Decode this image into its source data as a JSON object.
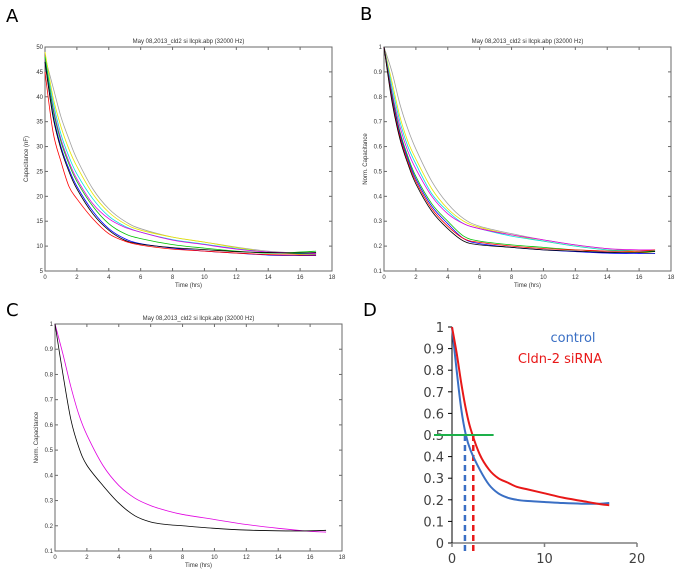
{
  "panels": {
    "A": {
      "letter": "A"
    },
    "B": {
      "letter": "B"
    },
    "C": {
      "letter": "C"
    },
    "D": {
      "letter": "D"
    }
  },
  "chart_data": [
    {
      "id": "A",
      "type": "line",
      "title": "May 08,2013_cld2 si llcpk.abp (32000 Hz)",
      "xlabel": "Time (hrs)",
      "ylabel": "Capacitance (nF)",
      "xlim": [
        0,
        18
      ],
      "ylim": [
        5,
        50
      ],
      "xticks": [
        0,
        2,
        4,
        6,
        8,
        10,
        12,
        14,
        16,
        18
      ],
      "yticks": [
        5,
        10,
        15,
        20,
        25,
        30,
        35,
        40,
        45,
        50
      ],
      "grid": false,
      "x": [
        0,
        0.5,
        1,
        1.5,
        2,
        3,
        4,
        5,
        6,
        8,
        10,
        12,
        14,
        16,
        17
      ],
      "series": [
        {
          "name": "gray",
          "color": "#a0a0a0",
          "values": [
            48,
            42,
            36,
            31.5,
            27.5,
            21.5,
            17.5,
            15,
            13.5,
            11.8,
            10.8,
            9.8,
            9.0,
            8.6,
            8.5
          ]
        },
        {
          "name": "yellow",
          "color": "#e8e800",
          "values": [
            49,
            40,
            34,
            29.5,
            26,
            20.5,
            16.8,
            14.5,
            13.2,
            11.8,
            10.8,
            9.7,
            8.8,
            8.4,
            8.3
          ]
        },
        {
          "name": "cyan",
          "color": "#00e0e0",
          "values": [
            48,
            39,
            32.5,
            28,
            24.5,
            19.5,
            16,
            14,
            12.8,
            11.3,
            10.4,
            9.5,
            8.8,
            8.5,
            8.4
          ]
        },
        {
          "name": "magenta",
          "color": "#e000e0",
          "values": [
            47.5,
            38,
            31.5,
            27,
            23.5,
            18.5,
            15.5,
            13.8,
            12.8,
            11.2,
            10.3,
            9.4,
            8.8,
            8.6,
            8.5
          ]
        },
        {
          "name": "green",
          "color": "#00c000",
          "values": [
            48,
            37.5,
            31,
            26.5,
            23,
            18,
            14.5,
            12.5,
            11.5,
            10.3,
            9.6,
            9.0,
            8.6,
            8.8,
            9.0
          ]
        },
        {
          "name": "blue",
          "color": "#0000ff",
          "values": [
            47,
            36.5,
            30,
            25.5,
            22,
            17,
            13.5,
            11.5,
            10.5,
            9.6,
            9.0,
            8.6,
            8.2,
            8.1,
            8.1
          ]
        },
        {
          "name": "black",
          "color": "#000000",
          "values": [
            47,
            36,
            29.5,
            25,
            21.5,
            16.5,
            13.2,
            11.2,
            10.4,
            9.7,
            9.3,
            8.9,
            8.7,
            8.6,
            8.7
          ]
        },
        {
          "name": "red",
          "color": "#ff0000",
          "values": [
            45,
            33,
            27,
            22,
            19.5,
            15.5,
            12.5,
            11,
            10.2,
            9.4,
            9.0,
            8.6,
            8.3,
            8.2,
            8.2
          ]
        }
      ]
    },
    {
      "id": "B",
      "type": "line",
      "title": "May 08,2013_cld2 si llcpk.abp (32000 Hz)",
      "xlabel": "Time (hrs)",
      "ylabel": "Norm. Capacitance",
      "xlim": [
        0,
        18
      ],
      "ylim": [
        0.1,
        1
      ],
      "xticks": [
        0,
        2,
        4,
        6,
        8,
        10,
        12,
        14,
        16,
        18
      ],
      "yticks": [
        0.1,
        0.2,
        0.3,
        0.4,
        0.5,
        0.6,
        0.7,
        0.8,
        0.9,
        1
      ],
      "grid": false,
      "x": [
        0,
        0.5,
        1,
        1.5,
        2,
        3,
        4,
        5,
        6,
        8,
        10,
        12,
        14,
        16,
        17
      ],
      "series": [
        {
          "name": "gray",
          "color": "#a0a0a0",
          "values": [
            1,
            0.9,
            0.77,
            0.67,
            0.59,
            0.46,
            0.37,
            0.31,
            0.28,
            0.25,
            0.225,
            0.205,
            0.19,
            0.18,
            0.18
          ]
        },
        {
          "name": "yellow",
          "color": "#e8e800",
          "values": [
            1,
            0.86,
            0.72,
            0.62,
            0.55,
            0.43,
            0.35,
            0.3,
            0.275,
            0.245,
            0.22,
            0.2,
            0.185,
            0.175,
            0.17
          ]
        },
        {
          "name": "cyan",
          "color": "#00e0e0",
          "values": [
            1,
            0.84,
            0.7,
            0.6,
            0.53,
            0.41,
            0.34,
            0.29,
            0.27,
            0.24,
            0.22,
            0.2,
            0.185,
            0.18,
            0.18
          ]
        },
        {
          "name": "magenta",
          "color": "#e000e0",
          "values": [
            1,
            0.82,
            0.68,
            0.58,
            0.51,
            0.4,
            0.33,
            0.29,
            0.27,
            0.245,
            0.225,
            0.205,
            0.19,
            0.185,
            0.185
          ]
        },
        {
          "name": "green",
          "color": "#00c000",
          "values": [
            1,
            0.81,
            0.66,
            0.56,
            0.48,
            0.37,
            0.3,
            0.24,
            0.22,
            0.205,
            0.195,
            0.185,
            0.18,
            0.18,
            0.18
          ]
        },
        {
          "name": "blue",
          "color": "#0000ff",
          "values": [
            1,
            0.8,
            0.65,
            0.55,
            0.47,
            0.36,
            0.29,
            0.23,
            0.21,
            0.195,
            0.185,
            0.178,
            0.172,
            0.17,
            0.17
          ]
        },
        {
          "name": "red",
          "color": "#ff0000",
          "values": [
            1,
            0.79,
            0.64,
            0.54,
            0.46,
            0.35,
            0.28,
            0.23,
            0.215,
            0.2,
            0.19,
            0.185,
            0.18,
            0.18,
            0.185
          ]
        },
        {
          "name": "black",
          "color": "#000000",
          "values": [
            1,
            0.78,
            0.63,
            0.53,
            0.45,
            0.34,
            0.27,
            0.22,
            0.205,
            0.195,
            0.185,
            0.18,
            0.175,
            0.175,
            0.178
          ]
        }
      ]
    },
    {
      "id": "C",
      "type": "line",
      "title": "May 08,2013_cld2 si llcpk.abp (32000 Hz)",
      "xlabel": "Time (hrs)",
      "ylabel": "Norm. Capacitance",
      "xlim": [
        0,
        18
      ],
      "ylim": [
        0.1,
        1
      ],
      "xticks": [
        0,
        2,
        4,
        6,
        8,
        10,
        12,
        14,
        16,
        18
      ],
      "yticks": [
        0.1,
        0.2,
        0.3,
        0.4,
        0.5,
        0.6,
        0.7,
        0.8,
        0.9,
        1
      ],
      "grid": false,
      "x": [
        0,
        0.5,
        1,
        1.5,
        2,
        3,
        4,
        5,
        6,
        7,
        8,
        10,
        12,
        14,
        16,
        17
      ],
      "series": [
        {
          "name": "magenta",
          "color": "#e000e0",
          "values": [
            1,
            0.88,
            0.75,
            0.64,
            0.56,
            0.44,
            0.36,
            0.31,
            0.28,
            0.26,
            0.245,
            0.225,
            0.205,
            0.19,
            0.178,
            0.175
          ]
        },
        {
          "name": "black",
          "color": "#000000",
          "values": [
            1,
            0.8,
            0.62,
            0.51,
            0.44,
            0.36,
            0.29,
            0.24,
            0.215,
            0.205,
            0.2,
            0.19,
            0.183,
            0.18,
            0.18,
            0.182
          ]
        }
      ]
    },
    {
      "id": "D",
      "type": "line",
      "title": "",
      "xlabel": "",
      "ylabel": "",
      "xlim": [
        0,
        20
      ],
      "ylim": [
        0,
        1
      ],
      "xticks": [
        0,
        10,
        20
      ],
      "yticks": [
        0,
        0.1,
        0.2,
        0.3,
        0.4,
        0.5,
        0.6,
        0.7,
        0.8,
        0.9,
        1
      ],
      "grid": false,
      "legend": "top-right",
      "x": [
        0,
        0.5,
        1,
        1.5,
        2,
        3,
        4,
        5,
        6,
        7,
        8,
        10,
        12,
        14,
        16,
        17
      ],
      "series": [
        {
          "name": "control",
          "color": "#3a6fc4",
          "values": [
            1,
            0.8,
            0.62,
            0.5,
            0.43,
            0.34,
            0.27,
            0.23,
            0.21,
            0.2,
            0.195,
            0.19,
            0.185,
            0.182,
            0.182,
            0.185
          ]
        },
        {
          "name": "Cldn-2 siRNA",
          "color": "#e81818",
          "values": [
            1,
            0.88,
            0.74,
            0.62,
            0.53,
            0.41,
            0.34,
            0.3,
            0.28,
            0.26,
            0.25,
            0.23,
            0.21,
            0.195,
            0.18,
            0.175
          ]
        }
      ],
      "threshold_line": {
        "y": 0.5,
        "x_range": [
          0,
          4.5
        ],
        "color": "#1db04a"
      },
      "half_times": [
        {
          "series": "control",
          "x": 1.4,
          "color": "#3a6fc4"
        },
        {
          "series": "Cldn-2 siRNA",
          "x": 2.3,
          "color": "#e81818"
        }
      ],
      "legend_entries": [
        {
          "label": "control",
          "color": "#3a6fc4"
        },
        {
          "label": "Cldn-2 siRNA",
          "color": "#e81818"
        }
      ]
    }
  ]
}
